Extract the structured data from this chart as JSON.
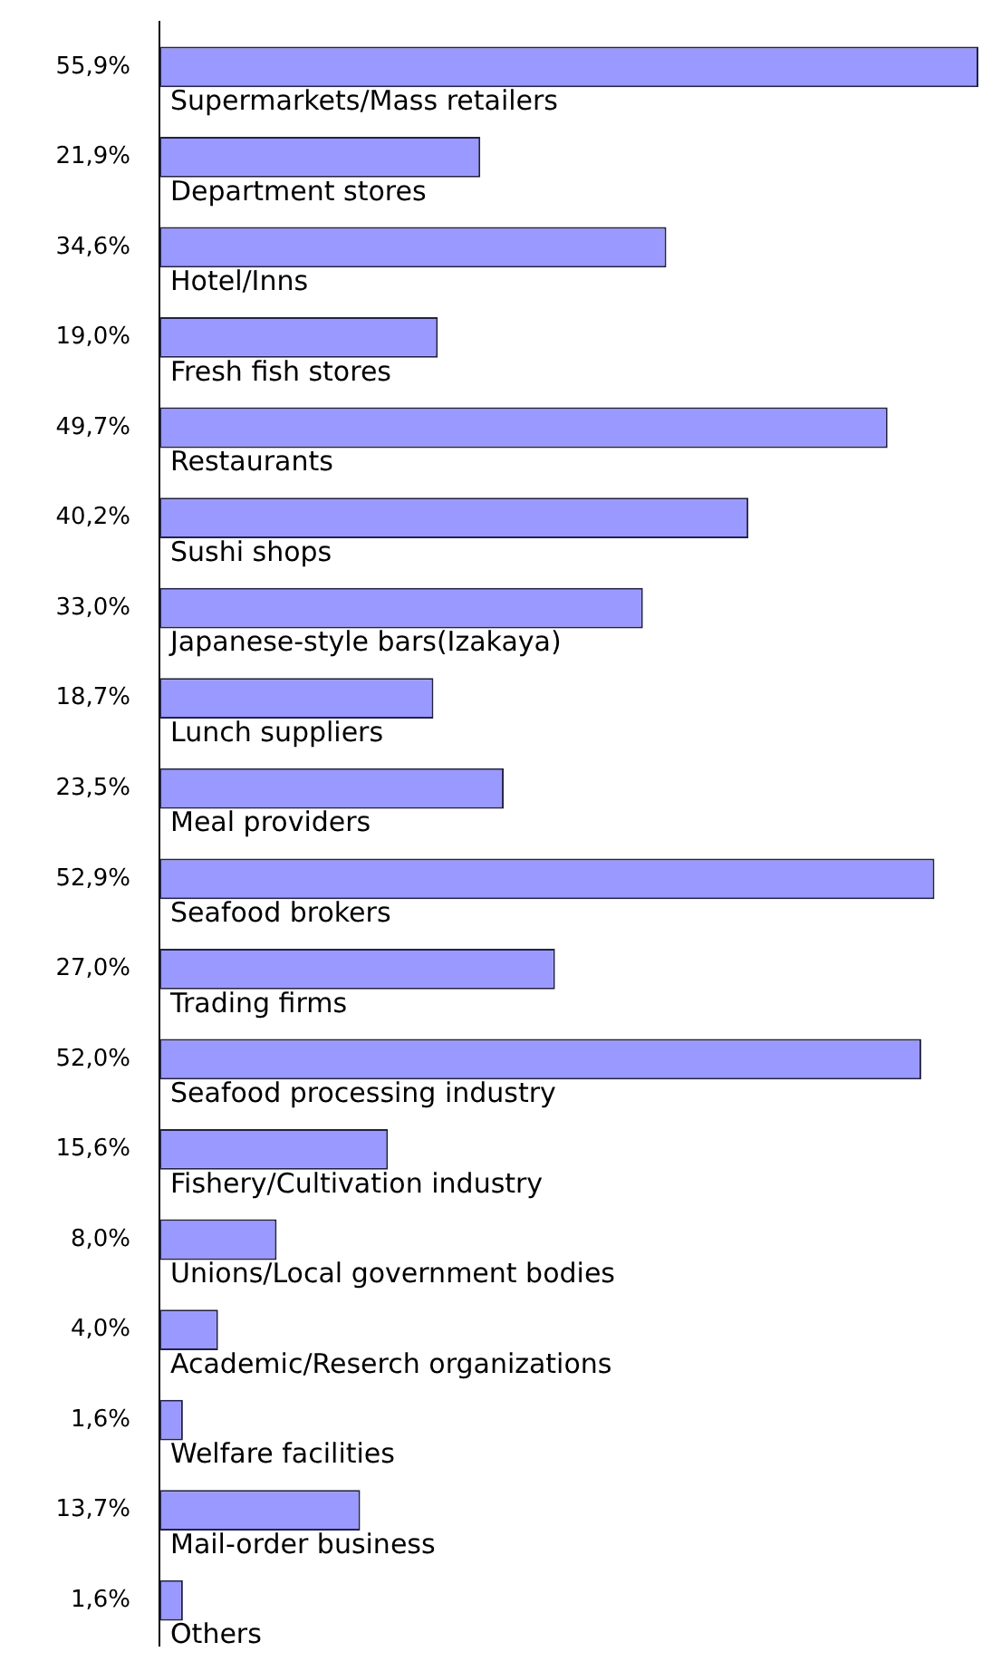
{
  "chart_data": {
    "type": "bar",
    "orientation": "horizontal",
    "color": "#9999ff",
    "categories": [
      "Supermarkets/Mass retailers",
      "Department stores",
      "Hotel/Inns",
      "Fresh fish stores",
      "Restaurants",
      "Sushi shops",
      "Japanese-style bars(Izakaya)",
      "Lunch suppliers",
      "Meal providers",
      "Seafood brokers",
      "Trading firms",
      "Seafood processing industry",
      "Fishery/Cultivation industry",
      "Unions/Local government bodies",
      "Academic/Reserch organizations",
      "Welfare facilities",
      "Mail-order business",
      "Others"
    ],
    "values": [
      55.9,
      21.9,
      34.6,
      19.0,
      49.7,
      40.2,
      33.0,
      18.7,
      23.5,
      52.9,
      27.0,
      52.0,
      15.6,
      8.0,
      4.0,
      1.6,
      13.7,
      1.6
    ],
    "value_labels": [
      "55,9%",
      "21,9%",
      "34,6%",
      "19,0%",
      "49,7%",
      "40,2%",
      "33,0%",
      "18,7%",
      "23,5%",
      "52,9%",
      "27,0%",
      "52,0%",
      "15,6%",
      "8,0%",
      "4,0%",
      "1,6%",
      "13,7%",
      "1,6%"
    ]
  }
}
